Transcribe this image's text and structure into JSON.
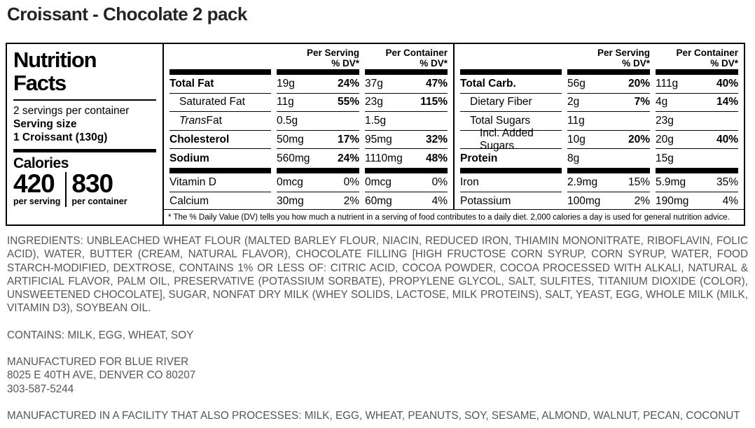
{
  "page_title": "Croissant - Chocolate 2 pack",
  "label": {
    "title_lines": [
      "Nutrition",
      "Facts"
    ],
    "servings_per_container": "2 servings per container",
    "serving_size_label": "Serving size",
    "serving_size_value": "1 Croissant (130g)",
    "calories": {
      "label": "Calories",
      "per_serving_value": "420",
      "per_serving_caption": "per serving",
      "per_container_value": "830",
      "per_container_caption": "per container"
    },
    "column_headers": {
      "per_serving": "Per Serving",
      "per_container": "Per Container",
      "dv": "% DV*"
    },
    "fat_table": {
      "rows": [
        {
          "name": "Total Fat",
          "s_amt": "19g",
          "s_dv": "24%",
          "c_amt": "37g",
          "c_dv": "47%"
        },
        {
          "name": "Saturated Fat",
          "s_amt": "11g",
          "s_dv": "55%",
          "c_amt": "23g",
          "c_dv": "115%"
        },
        {
          "name_italic": "Trans",
          "name_rest": " Fat",
          "s_amt": "0.5g",
          "s_dv": "",
          "c_amt": "1.5g",
          "c_dv": ""
        },
        {
          "name": "Cholesterol",
          "s_amt": "50mg",
          "s_dv": "17%",
          "c_amt": "95mg",
          "c_dv": "32%"
        },
        {
          "name": "Sodium",
          "s_amt": "560mg",
          "s_dv": "24%",
          "c_amt": "1110mg",
          "c_dv": "48%"
        },
        {
          "name": "Vitamin D",
          "s_amt": "0mcg",
          "s_dv": "0%",
          "c_amt": "0mcg",
          "c_dv": "0%"
        },
        {
          "name": "Calcium",
          "s_amt": "30mg",
          "s_dv": "2%",
          "c_amt": "60mg",
          "c_dv": "4%"
        }
      ]
    },
    "carb_table": {
      "rows": [
        {
          "name": "Total Carb.",
          "s_amt": "56g",
          "s_dv": "20%",
          "c_amt": "111g",
          "c_dv": "40%"
        },
        {
          "name": "Dietary Fiber",
          "s_amt": "2g",
          "s_dv": "7%",
          "c_amt": "4g",
          "c_dv": "14%"
        },
        {
          "name": "Total Sugars",
          "s_amt": "11g",
          "s_dv": "",
          "c_amt": "23g",
          "c_dv": ""
        },
        {
          "name": "Incl. Added Sugars",
          "s_amt": "10g",
          "s_dv": "20%",
          "c_amt": "20g",
          "c_dv": "40%"
        },
        {
          "name": "Protein",
          "s_amt": "8g",
          "s_dv": "",
          "c_amt": "15g",
          "c_dv": ""
        },
        {
          "name": "Iron",
          "s_amt": "2.9mg",
          "s_dv": "15%",
          "c_amt": "5.9mg",
          "c_dv": "35%"
        },
        {
          "name": "Potassium",
          "s_amt": "100mg",
          "s_dv": "2%",
          "c_amt": "190mg",
          "c_dv": "4%"
        }
      ]
    },
    "footnote": "* The % Daily Value (DV) tells you how much a nutrient in a serving of food contributes to a daily diet. 2,000 calories a day is used for general nutrition advice."
  },
  "details": {
    "ingredients": "INGREDIENTS: UNBLEACHED WHEAT FLOUR (MALTED BARLEY FLOUR, NIACIN, REDUCED IRON, THIAMIN MONONITRATE, RIBOFLAVIN, FOLIC ACID), WATER, BUTTER (CREAM, NATURAL FLAVOR), CHOCOLATE FILLING [HIGH FRUCTOSE CORN SYRUP, CORN SYRUP, WATER, FOOD STARCH-MODIFIED, DEXTROSE, CONTAINS 1% OR LESS OF: CITRIC ACID, COCOA POWDER, COCOA PROCESSED WITH ALKALI, NATURAL & ARTIFICIAL FLAVOR, PALM OIL, PRESERVATIVE (POTASSIUM SORBATE), PROPYLENE GLYCOL, SALT, SULFITES, TITANIUM DIOXIDE (COLOR), UNSWEETENED CHOCOLATE], SUGAR, NONFAT DRY MILK (WHEY SOLIDS, LACTOSE, MILK PROTEINS), SALT, YEAST, EGG, WHOLE MILK (MILK, VITAMIN D3), SOYBEAN OIL.",
    "contains": "CONTAINS: MILK, EGG, WHEAT, SOY",
    "manufactured_for_lines": [
      "MANUFACTURED FOR BLUE RIVER",
      "8025 E 40TH AVE, DENVER CO 80207",
      "303-587-5244"
    ],
    "facility": "MANUFACTURED IN A FACILITY THAT ALSO PROCESSES: MILK, EGG, WHEAT, PEANUTS, SOY, SESAME, ALMOND, WALNUT, PECAN, COCONUT"
  },
  "colors": {
    "label_ink": "#000000",
    "body_text": "#53565A",
    "title_text": "#212529"
  }
}
